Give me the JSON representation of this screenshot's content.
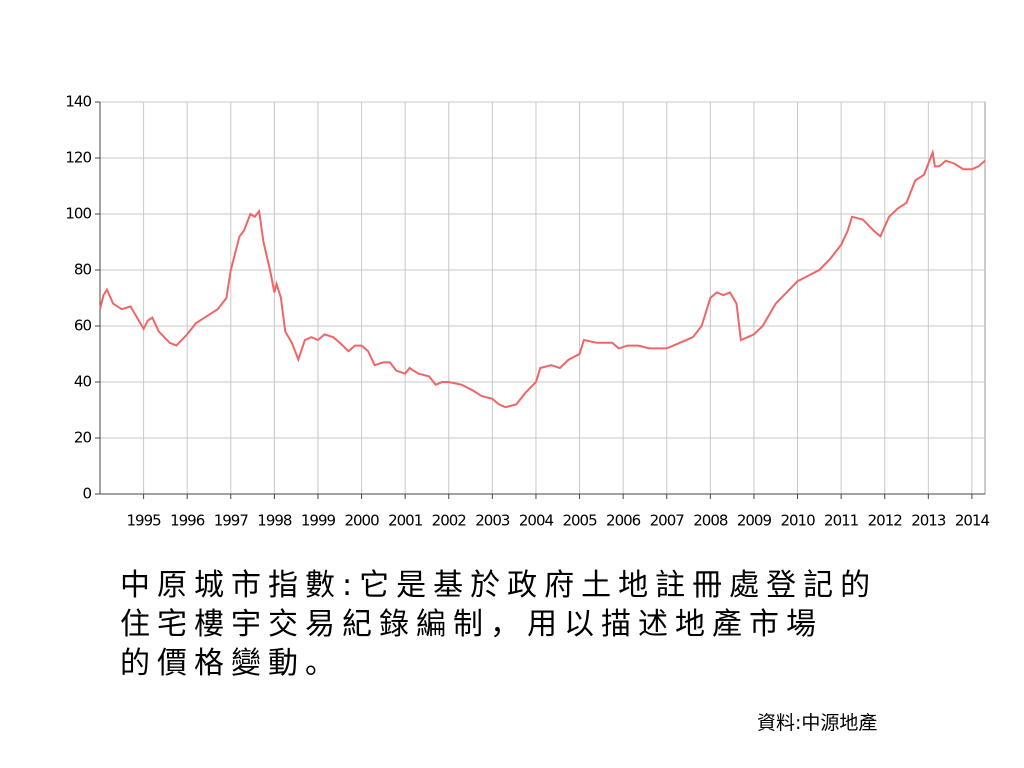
{
  "chart_data": {
    "type": "line",
    "x": [
      1994.0,
      1994.08,
      1994.16,
      1994.3,
      1994.5,
      1994.7,
      1994.85,
      1995.0,
      1995.1,
      1995.2,
      1995.35,
      1995.6,
      1995.75,
      1996.0,
      1996.2,
      1996.5,
      1996.7,
      1996.9,
      1997.0,
      1997.2,
      1997.3,
      1997.45,
      1997.55,
      1997.65,
      1997.75,
      1997.9,
      1998.0,
      1998.05,
      1998.15,
      1998.25,
      1998.4,
      1998.55,
      1998.7,
      1998.85,
      1999.0,
      1999.15,
      1999.35,
      1999.5,
      1999.7,
      1999.85,
      2000.0,
      2000.15,
      2000.3,
      2000.5,
      2000.65,
      2000.8,
      2001.0,
      2001.1,
      2001.3,
      2001.55,
      2001.7,
      2001.85,
      2002.0,
      2002.3,
      2002.55,
      2002.75,
      2003.0,
      2003.15,
      2003.3,
      2003.55,
      2003.75,
      2004.0,
      2004.1,
      2004.35,
      2004.55,
      2004.75,
      2005.0,
      2005.1,
      2005.4,
      2005.75,
      2005.9,
      2006.1,
      2006.35,
      2006.6,
      2007.0,
      2007.3,
      2007.6,
      2007.8,
      2008.0,
      2008.15,
      2008.3,
      2008.45,
      2008.6,
      2008.7,
      2009.0,
      2009.2,
      2009.5,
      2009.75,
      2010.0,
      2010.25,
      2010.5,
      2010.75,
      2011.0,
      2011.15,
      2011.25,
      2011.5,
      2011.75,
      2011.9,
      2012.1,
      2012.3,
      2012.5,
      2012.7,
      2012.9,
      2013.0,
      2013.1,
      2013.15,
      2013.25,
      2013.4,
      2013.6,
      2013.8,
      2014.0,
      2014.15,
      2014.3
    ],
    "series": [
      {
        "color": "#f06666",
        "values": [
          66,
          71,
          73,
          68,
          66,
          67,
          63,
          59,
          62,
          63,
          58,
          54,
          53,
          57,
          61,
          64,
          66,
          70,
          80,
          92,
          94,
          100,
          99,
          101,
          90,
          80,
          72,
          75,
          70,
          58,
          54,
          48,
          55,
          56,
          55,
          57,
          56,
          54,
          51,
          53,
          53,
          51,
          46,
          47,
          47,
          44,
          43,
          45,
          43,
          42,
          39,
          40,
          40,
          39,
          37,
          35,
          34,
          32,
          31,
          32,
          36,
          40,
          45,
          46,
          45,
          48,
          50,
          55,
          54,
          54,
          52,
          53,
          53,
          52,
          52,
          54,
          56,
          60,
          70,
          72,
          71,
          72,
          68,
          55,
          57,
          60,
          68,
          72,
          76,
          78,
          80,
          84,
          89,
          94,
          99,
          98,
          94,
          92,
          99,
          102,
          104,
          112,
          114,
          118,
          122,
          117,
          117,
          119,
          118,
          116,
          116,
          117,
          119
        ]
      }
    ],
    "xlim": [
      1994,
      2014.3
    ],
    "xticks": [
      1995,
      1996,
      1997,
      1998,
      1999,
      2000,
      2001,
      2002,
      2003,
      2004,
      2005,
      2006,
      2007,
      2008,
      2009,
      2010,
      2011,
      2012,
      2013,
      2014
    ],
    "ylim": [
      0,
      140
    ],
    "yticks": [
      0,
      20,
      40,
      60,
      80,
      100,
      120,
      140
    ],
    "grid": true
  },
  "description": [
    "中原城市指數:它是基於政府土地註冊處登記的",
    "住宅樓宇交易紀錄編制，用以描述地產市場",
    "的價格變動。"
  ],
  "source": "資料:中源地產"
}
